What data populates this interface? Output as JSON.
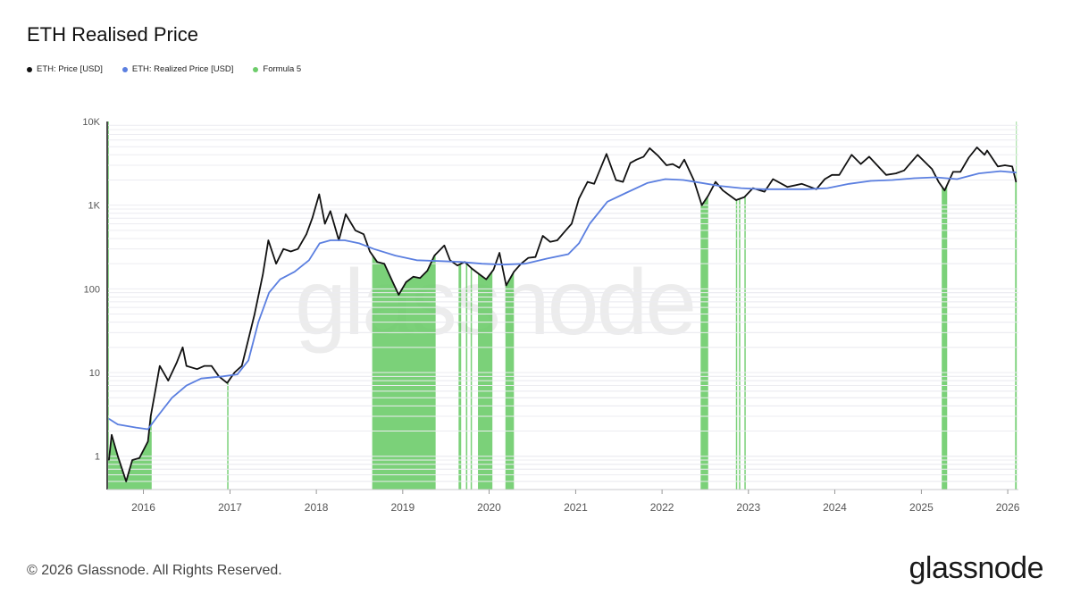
{
  "page": {
    "title": "ETH Realised Price",
    "copyright": "© 2026 Glassnode. All Rights Reserved.",
    "brand": "glassnode",
    "watermark": "glassnode"
  },
  "legend": [
    {
      "label": "ETH: Price [USD]",
      "color": "#111111"
    },
    {
      "label": "ETH: Realized Price [USD]",
      "color": "#5b7fe0"
    },
    {
      "label": "Formula 5",
      "color": "#6dcc6a"
    }
  ],
  "chart_data": {
    "type": "line",
    "y_scale": "log",
    "ylim": [
      0.4,
      10000
    ],
    "xlim": [
      "2015-08-01",
      "2026-02-15"
    ],
    "y_ticks": [
      {
        "value": 1,
        "label": "1"
      },
      {
        "value": 10,
        "label": "10"
      },
      {
        "value": 100,
        "label": "100"
      },
      {
        "value": 1000,
        "label": "1K"
      },
      {
        "value": 10000,
        "label": "10K"
      }
    ],
    "x_ticks": [
      {
        "date": "2016-01-01",
        "label": "2016"
      },
      {
        "date": "2017-01-01",
        "label": "2017"
      },
      {
        "date": "2018-01-01",
        "label": "2018"
      },
      {
        "date": "2019-01-01",
        "label": "2019"
      },
      {
        "date": "2020-01-01",
        "label": "2020"
      },
      {
        "date": "2021-01-01",
        "label": "2021"
      },
      {
        "date": "2022-01-01",
        "label": "2022"
      },
      {
        "date": "2023-01-01",
        "label": "2023"
      },
      {
        "date": "2024-01-01",
        "label": "2024"
      },
      {
        "date": "2025-01-01",
        "label": "2025"
      },
      {
        "date": "2026-01-01",
        "label": "2026"
      }
    ],
    "grid": "horizontal",
    "series": [
      {
        "name": "ETH: Price [USD]",
        "color": "#111111",
        "points": [
          [
            "2015-08-08",
            0.9
          ],
          [
            "2015-08-20",
            1.8
          ],
          [
            "2015-09-15",
            1.0
          ],
          [
            "2015-10-20",
            0.5
          ],
          [
            "2015-11-15",
            0.9
          ],
          [
            "2015-12-15",
            0.95
          ],
          [
            "2016-01-20",
            1.5
          ],
          [
            "2016-02-01",
            3.0
          ],
          [
            "2016-02-20",
            6.0
          ],
          [
            "2016-03-10",
            12
          ],
          [
            "2016-04-15",
            8
          ],
          [
            "2016-05-20",
            13
          ],
          [
            "2016-06-15",
            20
          ],
          [
            "2016-07-01",
            12
          ],
          [
            "2016-08-15",
            11
          ],
          [
            "2016-09-15",
            12
          ],
          [
            "2016-10-15",
            12
          ],
          [
            "2016-11-15",
            9
          ],
          [
            "2016-12-20",
            7.5
          ],
          [
            "2017-01-20",
            10
          ],
          [
            "2017-02-20",
            12
          ],
          [
            "2017-03-15",
            22
          ],
          [
            "2017-04-15",
            50
          ],
          [
            "2017-05-20",
            150
          ],
          [
            "2017-06-12",
            380
          ],
          [
            "2017-07-15",
            200
          ],
          [
            "2017-08-15",
            300
          ],
          [
            "2017-09-15",
            280
          ],
          [
            "2017-10-15",
            300
          ],
          [
            "2017-11-20",
            450
          ],
          [
            "2017-12-15",
            700
          ],
          [
            "2018-01-13",
            1350
          ],
          [
            "2018-02-06",
            600
          ],
          [
            "2018-03-01",
            850
          ],
          [
            "2018-04-06",
            380
          ],
          [
            "2018-05-05",
            780
          ],
          [
            "2018-06-15",
            500
          ],
          [
            "2018-07-20",
            450
          ],
          [
            "2018-08-15",
            280
          ],
          [
            "2018-09-15",
            210
          ],
          [
            "2018-10-15",
            200
          ],
          [
            "2018-11-20",
            120
          ],
          [
            "2018-12-15",
            85
          ],
          [
            "2019-01-15",
            120
          ],
          [
            "2019-02-15",
            140
          ],
          [
            "2019-03-15",
            135
          ],
          [
            "2019-04-15",
            165
          ],
          [
            "2019-05-15",
            250
          ],
          [
            "2019-06-26",
            330
          ],
          [
            "2019-07-20",
            220
          ],
          [
            "2019-08-20",
            190
          ],
          [
            "2019-09-20",
            210
          ],
          [
            "2019-10-20",
            175
          ],
          [
            "2019-11-20",
            150
          ],
          [
            "2019-12-20",
            130
          ],
          [
            "2020-01-20",
            170
          ],
          [
            "2020-02-14",
            270
          ],
          [
            "2020-03-13",
            110
          ],
          [
            "2020-04-15",
            160
          ],
          [
            "2020-05-15",
            200
          ],
          [
            "2020-06-15",
            235
          ],
          [
            "2020-07-15",
            240
          ],
          [
            "2020-08-15",
            430
          ],
          [
            "2020-09-15",
            365
          ],
          [
            "2020-10-15",
            380
          ],
          [
            "2020-11-20",
            500
          ],
          [
            "2020-12-15",
            600
          ],
          [
            "2021-01-15",
            1200
          ],
          [
            "2021-02-20",
            1900
          ],
          [
            "2021-03-20",
            1800
          ],
          [
            "2021-05-11",
            4100
          ],
          [
            "2021-06-20",
            2000
          ],
          [
            "2021-07-20",
            1900
          ],
          [
            "2021-08-20",
            3200
          ],
          [
            "2021-09-15",
            3500
          ],
          [
            "2021-10-15",
            3800
          ],
          [
            "2021-11-10",
            4800
          ],
          [
            "2021-12-15",
            3900
          ],
          [
            "2022-01-20",
            3000
          ],
          [
            "2022-02-15",
            3100
          ],
          [
            "2022-03-15",
            2800
          ],
          [
            "2022-04-05",
            3500
          ],
          [
            "2022-05-15",
            2000
          ],
          [
            "2022-06-18",
            1000
          ],
          [
            "2022-07-15",
            1300
          ],
          [
            "2022-08-15",
            1900
          ],
          [
            "2022-09-15",
            1500
          ],
          [
            "2022-10-15",
            1300
          ],
          [
            "2022-11-10",
            1150
          ],
          [
            "2022-12-15",
            1250
          ],
          [
            "2023-01-20",
            1600
          ],
          [
            "2023-03-10",
            1450
          ],
          [
            "2023-04-15",
            2050
          ],
          [
            "2023-06-15",
            1650
          ],
          [
            "2023-08-15",
            1800
          ],
          [
            "2023-10-15",
            1550
          ],
          [
            "2023-11-20",
            2050
          ],
          [
            "2023-12-20",
            2300
          ],
          [
            "2024-01-20",
            2300
          ],
          [
            "2024-03-12",
            4000
          ],
          [
            "2024-04-20",
            3100
          ],
          [
            "2024-05-25",
            3800
          ],
          [
            "2024-08-05",
            2300
          ],
          [
            "2024-09-15",
            2400
          ],
          [
            "2024-10-20",
            2600
          ],
          [
            "2024-12-16",
            4000
          ],
          [
            "2025-01-15",
            3300
          ],
          [
            "2025-02-15",
            2700
          ],
          [
            "2025-03-15",
            1900
          ],
          [
            "2025-04-09",
            1500
          ],
          [
            "2025-05-15",
            2500
          ],
          [
            "2025-06-15",
            2500
          ],
          [
            "2025-07-20",
            3700
          ],
          [
            "2025-08-24",
            4900
          ],
          [
            "2025-09-25",
            4000
          ],
          [
            "2025-10-06",
            4500
          ],
          [
            "2025-11-20",
            2900
          ],
          [
            "2025-12-20",
            3000
          ],
          [
            "2026-01-20",
            2900
          ],
          [
            "2026-02-05",
            1900
          ]
        ]
      },
      {
        "name": "ETH: Realized Price [USD]",
        "color": "#5b7fe0",
        "points": [
          [
            "2015-08-08",
            2.8
          ],
          [
            "2015-09-15",
            2.4
          ],
          [
            "2015-12-01",
            2.2
          ],
          [
            "2016-01-20",
            2.1
          ],
          [
            "2016-03-01",
            3.0
          ],
          [
            "2016-05-01",
            5.0
          ],
          [
            "2016-07-01",
            7.0
          ],
          [
            "2016-09-01",
            8.5
          ],
          [
            "2016-12-01",
            9.0
          ],
          [
            "2017-02-01",
            9.5
          ],
          [
            "2017-03-20",
            14
          ],
          [
            "2017-05-01",
            40
          ],
          [
            "2017-06-15",
            90
          ],
          [
            "2017-08-01",
            130
          ],
          [
            "2017-10-01",
            160
          ],
          [
            "2017-12-01",
            220
          ],
          [
            "2018-01-15",
            350
          ],
          [
            "2018-03-01",
            380
          ],
          [
            "2018-05-01",
            380
          ],
          [
            "2018-07-01",
            350
          ],
          [
            "2018-09-01",
            300
          ],
          [
            "2018-12-01",
            250
          ],
          [
            "2019-03-01",
            220
          ],
          [
            "2019-06-01",
            215
          ],
          [
            "2019-09-01",
            210
          ],
          [
            "2019-12-01",
            200
          ],
          [
            "2020-03-01",
            195
          ],
          [
            "2020-06-01",
            200
          ],
          [
            "2020-09-01",
            230
          ],
          [
            "2020-12-01",
            260
          ],
          [
            "2021-01-15",
            350
          ],
          [
            "2021-03-01",
            600
          ],
          [
            "2021-05-15",
            1100
          ],
          [
            "2021-08-01",
            1400
          ],
          [
            "2021-11-01",
            1850
          ],
          [
            "2022-01-15",
            2050
          ],
          [
            "2022-04-01",
            2000
          ],
          [
            "2022-06-15",
            1850
          ],
          [
            "2022-09-01",
            1700
          ],
          [
            "2022-12-01",
            1600
          ],
          [
            "2023-03-01",
            1550
          ],
          [
            "2023-06-01",
            1550
          ],
          [
            "2023-09-01",
            1550
          ],
          [
            "2023-12-01",
            1600
          ],
          [
            "2024-03-01",
            1800
          ],
          [
            "2024-06-01",
            1950
          ],
          [
            "2024-09-01",
            2000
          ],
          [
            "2024-12-01",
            2100
          ],
          [
            "2025-03-01",
            2150
          ],
          [
            "2025-06-01",
            2050
          ],
          [
            "2025-09-01",
            2400
          ],
          [
            "2025-12-01",
            2550
          ],
          [
            "2026-02-05",
            2450
          ]
        ]
      }
    ],
    "highlight_series": {
      "name": "Formula 5",
      "color": "#6dcc6a",
      "ranges": [
        [
          "2015-08-05",
          "2016-02-05"
        ],
        [
          "2016-12-20",
          "2016-12-23"
        ],
        [
          "2018-08-25",
          "2019-05-20"
        ],
        [
          "2019-08-25",
          "2019-09-05"
        ],
        [
          "2019-09-25",
          "2019-10-01"
        ],
        [
          "2019-10-15",
          "2019-10-20"
        ],
        [
          "2019-11-15",
          "2020-01-15"
        ],
        [
          "2020-03-10",
          "2020-04-15"
        ],
        [
          "2022-06-13",
          "2022-07-15"
        ],
        [
          "2022-11-09",
          "2022-11-13"
        ],
        [
          "2022-11-22",
          "2022-11-27"
        ],
        [
          "2022-12-15",
          "2022-12-20"
        ],
        [
          "2025-03-28",
          "2025-04-20"
        ],
        [
          "2026-02-01",
          "2026-02-08"
        ]
      ]
    }
  }
}
